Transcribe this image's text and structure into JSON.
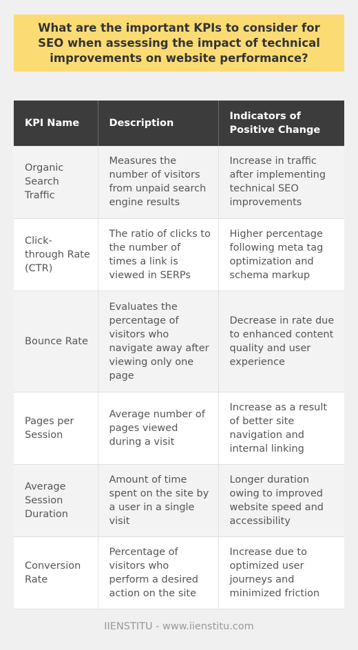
{
  "title": "What are the important KPIs to consider for SEO when assessing the impact of technical improvements on website performance?",
  "table": {
    "headers": [
      "KPI Name",
      "Description",
      "Indicators of Positive Change"
    ],
    "rows": [
      [
        "Organic Search Traffic",
        "Measures the number of visitors from unpaid search engine results",
        "Increase in traffic after implementing technical SEO improvements"
      ],
      [
        "Click-through Rate (CTR)",
        "The ratio of clicks to the number of times a link is viewed in SERPs",
        "Higher percentage following meta tag optimization and schema markup"
      ],
      [
        "Bounce Rate",
        "Evaluates the percentage of visitors who navigate away after viewing only one page",
        "Decrease in rate due to enhanced content quality and user experience"
      ],
      [
        "Pages per Session",
        "Average number of pages viewed during a visit",
        "Increase as a result of better site navigation and internal linking"
      ],
      [
        "Average Session Duration",
        "Amount of time spent on the site by a user in a single visit",
        "Longer duration owing to improved website speed and accessibility"
      ],
      [
        "Conversion Rate",
        "Percentage of visitors who perform a desired action on the site",
        "Increase due to optimized user journeys and minimized friction"
      ]
    ]
  },
  "footer": "IIENSTITU - www.iienstitu.com",
  "colors": {
    "title_bg": "#fbdc74",
    "header_bg": "#3c3c3c",
    "row_alt_bg": "#f3f3f3",
    "page_bg": "#f0f0f0"
  }
}
